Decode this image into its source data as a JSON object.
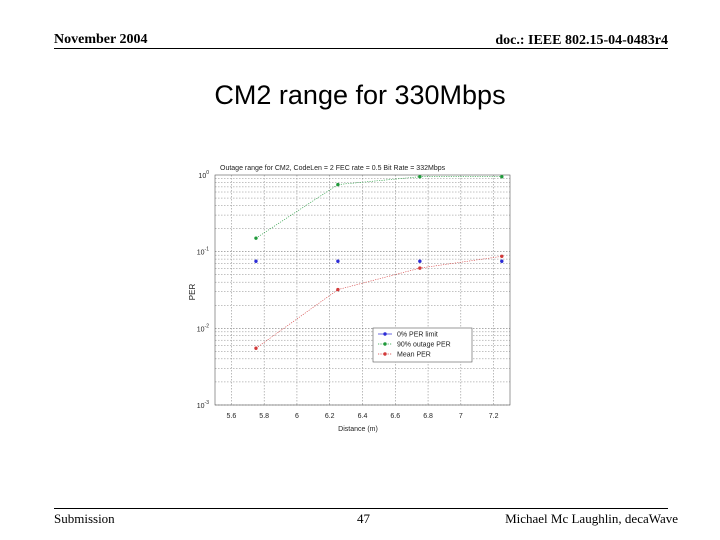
{
  "header": {
    "date": "November 2004",
    "doc_id": "doc.: IEEE 802.15-04-0483r4"
  },
  "slide": {
    "title": "CM2 range for 330Mbps"
  },
  "footer": {
    "left": "Submission",
    "page": "47",
    "author": "Michael Mc Laughlin, decaWave"
  },
  "chart_data": {
    "type": "line",
    "title": "Outage range for CM2, CodeLen = 2 FEC rate = 0.5 Bit Rate = 332Mbps",
    "xlabel": "Distance (m)",
    "ylabel": "PER",
    "x_ticks": [
      "5.6",
      "5.8",
      "6",
      "6.2",
      "6.4",
      "6.6",
      "6.8",
      "7",
      "7.2"
    ],
    "y_ticks": [
      {
        "base": "10",
        "exp": "0",
        "value": 1
      },
      {
        "base": "10",
        "exp": "-1",
        "value": 0.1
      },
      {
        "base": "10",
        "exp": "-2",
        "value": 0.01
      },
      {
        "base": "10",
        "exp": "-3",
        "value": 0.001
      }
    ],
    "xlim": [
      5.5,
      7.3
    ],
    "ylim": [
      0.001,
      1
    ],
    "yscale": "log",
    "grid": true,
    "legend_position": "lower-right",
    "x": [
      5.75,
      6.25,
      6.75,
      7.25
    ],
    "series": [
      {
        "name": "0% PER limit",
        "color": "#2b2bd6",
        "values": [
          0.075,
          0.075,
          0.075,
          0.075
        ],
        "line": false
      },
      {
        "name": "90% outage PER",
        "color": "#1f9a3a",
        "values": [
          0.15,
          0.75,
          0.95,
          0.95
        ],
        "line": true
      },
      {
        "name": "Mean PER",
        "color": "#d23a3a",
        "values": [
          0.0055,
          0.032,
          0.061,
          0.087
        ],
        "line": true
      }
    ]
  }
}
